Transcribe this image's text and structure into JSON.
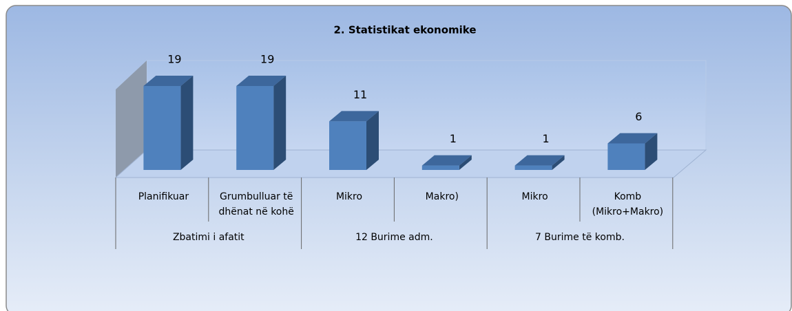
{
  "chart_data": {
    "type": "bar3d",
    "title": "2. Statistikat ekonomike",
    "categories": [
      [
        "Planifikuar"
      ],
      [
        "Grumbulluar të",
        "dhënat në kohë"
      ],
      [
        "Mikro"
      ],
      [
        "Makro)"
      ],
      [
        "Mikro"
      ],
      [
        "Komb",
        "(Mikro+Makro)"
      ]
    ],
    "groups": [
      "Zbatimi i afatit",
      "12 Burime adm.",
      "7 Burime të komb."
    ],
    "values": [
      19,
      19,
      11,
      1,
      1,
      6
    ],
    "color": "#4f81bd"
  }
}
